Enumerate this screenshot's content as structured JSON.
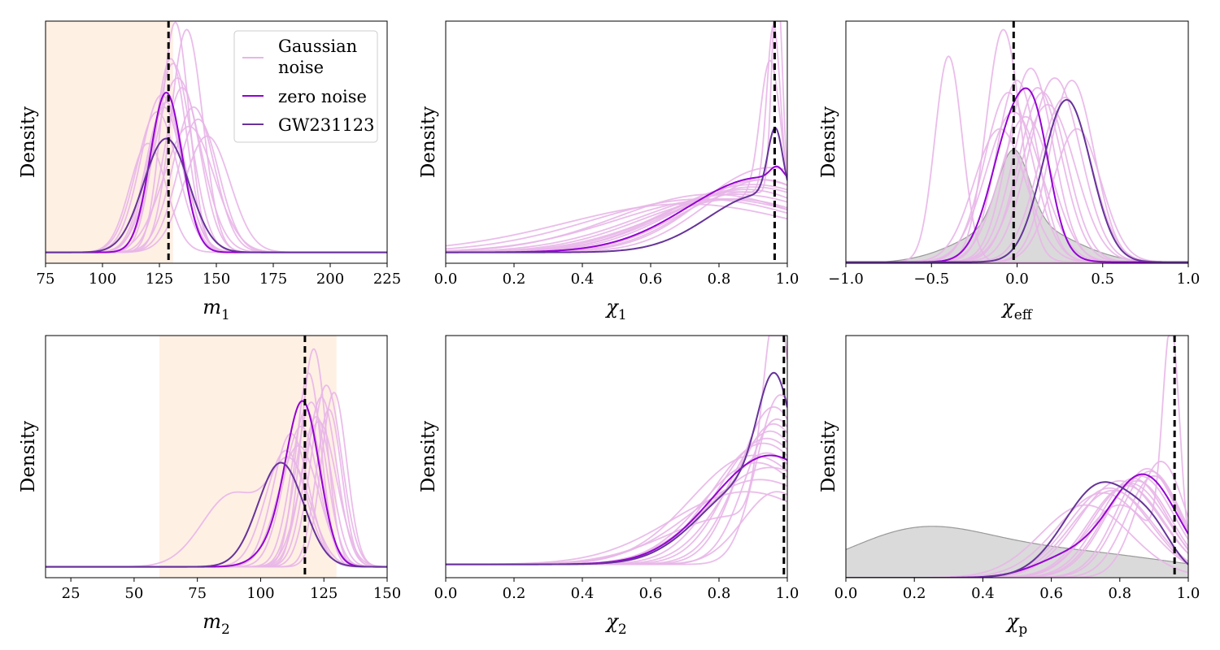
{
  "legend": {
    "entries": [
      {
        "label_line1": "Gaussian",
        "label_line2": "noise",
        "color": "#e6b3e6"
      },
      {
        "label_line1": "zero noise",
        "label_line2": "",
        "color": "#9400d3"
      },
      {
        "label_line1": "GW231123",
        "label_line2": "",
        "color": "#663399"
      }
    ]
  },
  "colors": {
    "gaussian": "#e8b6e8",
    "zero": "#9400d3",
    "gw": "#663399",
    "prior_fill": "#d3d3d3",
    "prior_stroke": "#999999",
    "band": "#fff0e4",
    "truth": "#000000"
  },
  "chart_data": [
    {
      "type": "line",
      "id": "m1",
      "ylabel": "Density",
      "xlabel_main": "m",
      "xlabel_sub": "1",
      "xlim": [
        75,
        225
      ],
      "ylim": [
        0,
        1
      ],
      "xticks": [
        75,
        100,
        125,
        150,
        175,
        200,
        225
      ],
      "xtick_labels": [
        "75",
        "100",
        "125",
        "150",
        "175",
        "200",
        "225"
      ],
      "band": [
        75,
        131
      ],
      "truth": 129,
      "baseline": 0.045,
      "show_legend": true,
      "series": [
        {
          "name": "zero noise",
          "peaks": [
            [
              128,
              0.66,
              7
            ]
          ]
        },
        {
          "name": "GW231123",
          "peaks": [
            [
              128,
              0.47,
              10
            ]
          ]
        }
      ],
      "gaussian_noise": [
        [
          [
            137,
            0.92,
            7
          ]
        ],
        [
          [
            131,
            0.78,
            8
          ]
        ],
        [
          [
            126,
            0.65,
            9
          ]
        ],
        [
          [
            133,
            0.72,
            10
          ]
        ],
        [
          [
            140,
            0.6,
            9
          ]
        ],
        [
          [
            128,
            0.62,
            8
          ]
        ],
        [
          [
            146,
            0.48,
            10
          ]
        ],
        [
          [
            120,
            0.45,
            8
          ]
        ],
        [
          [
            135,
            0.68,
            8
          ]
        ],
        [
          [
            130,
            0.8,
            7
          ]
        ],
        [
          [
            142,
            0.55,
            9
          ]
        ],
        [
          [
            124,
            0.58,
            9
          ]
        ],
        [
          [
            132,
            0.95,
            6
          ]
        ],
        [
          [
            138,
            0.52,
            11
          ]
        ],
        [
          [
            127,
            0.6,
            8
          ]
        ]
      ]
    },
    {
      "type": "line",
      "id": "chi1",
      "ylabel": "Density",
      "xlabel_main": "χ",
      "xlabel_sub": "1",
      "xlim": [
        0,
        1
      ],
      "ylim": [
        0,
        1
      ],
      "xticks": [
        0,
        0.2,
        0.4,
        0.6,
        0.8,
        1.0
      ],
      "xtick_labels": [
        "0.0",
        "0.2",
        "0.4",
        "0.6",
        "0.8",
        "1.0"
      ],
      "truth": 0.963,
      "baseline": 0.045,
      "series": [
        {
          "name": "zero noise",
          "peaks": [
            [
              0.93,
              0.31,
              0.22
            ],
            [
              0.97,
              0.05,
              0.02
            ]
          ]
        },
        {
          "name": "GW231123",
          "peaks": [
            [
              0.93,
              0.24,
              0.16
            ],
            [
              0.965,
              0.28,
              0.022
            ]
          ]
        }
      ],
      "gaussian_noise": [
        [
          [
            0.97,
            0.93,
            0.015
          ],
          [
            0.88,
            0.25,
            0.2
          ]
        ],
        [
          [
            0.96,
            0.72,
            0.02
          ],
          [
            0.85,
            0.25,
            0.22
          ]
        ],
        [
          [
            0.95,
            0.6,
            0.03
          ],
          [
            0.82,
            0.22,
            0.25
          ]
        ],
        [
          [
            0.9,
            0.28,
            0.25
          ]
        ],
        [
          [
            0.92,
            0.3,
            0.2
          ]
        ],
        [
          [
            0.85,
            0.24,
            0.28
          ]
        ],
        [
          [
            0.8,
            0.22,
            0.3
          ]
        ],
        [
          [
            0.88,
            0.26,
            0.22
          ]
        ],
        [
          [
            0.93,
            0.3,
            0.18
          ]
        ],
        [
          [
            0.75,
            0.22,
            0.32
          ]
        ],
        [
          [
            0.9,
            0.27,
            0.24
          ]
        ],
        [
          [
            0.95,
            0.35,
            0.2
          ]
        ],
        [
          [
            0.7,
            0.2,
            0.35
          ]
        ],
        [
          [
            0.85,
            0.22,
            0.25
          ]
        ],
        [
          [
            0.78,
            0.24,
            0.28
          ]
        ]
      ]
    },
    {
      "type": "line",
      "id": "chieff",
      "ylabel": "Density",
      "xlabel_main": "χ",
      "xlabel_sub": "eff",
      "xlim": [
        -1,
        1
      ],
      "ylim": [
        0,
        1
      ],
      "xticks": [
        -1,
        -0.5,
        0,
        0.5,
        1
      ],
      "xtick_labels": [
        "−1.0",
        "−0.5",
        "0.0",
        "0.5",
        "1.0"
      ],
      "truth": -0.02,
      "baseline": 0.005,
      "prior": {
        "peaks": [
          [
            -0.02,
            0.3,
            0.09
          ],
          [
            0.0,
            0.17,
            0.3
          ]
        ]
      },
      "series": [
        {
          "name": "zero noise",
          "peaks": [
            [
              0.0,
              0.62,
              0.14
            ],
            [
              0.12,
              0.2,
              0.08
            ]
          ]
        },
        {
          "name": "GW231123",
          "peaks": [
            [
              0.29,
              0.67,
              0.14
            ]
          ]
        }
      ],
      "gaussian_noise": [
        [
          [
            -0.4,
            0.85,
            0.08
          ]
        ],
        [
          [
            -0.08,
            0.96,
            0.1
          ]
        ],
        [
          [
            0.05,
            0.6,
            0.15
          ]
        ],
        [
          [
            0.12,
            0.72,
            0.14
          ]
        ],
        [
          [
            0.22,
            0.76,
            0.15
          ]
        ],
        [
          [
            0.32,
            0.75,
            0.13
          ]
        ],
        [
          [
            -0.05,
            0.7,
            0.14
          ]
        ],
        [
          [
            0.08,
            0.8,
            0.13
          ]
        ],
        [
          [
            0.18,
            0.65,
            0.16
          ]
        ],
        [
          [
            -0.1,
            0.55,
            0.15
          ]
        ],
        [
          [
            0.28,
            0.68,
            0.15
          ]
        ],
        [
          [
            0.0,
            0.75,
            0.12
          ]
        ],
        [
          [
            0.15,
            0.7,
            0.14
          ]
        ],
        [
          [
            -0.02,
            0.62,
            0.16
          ]
        ],
        [
          [
            0.35,
            0.55,
            0.14
          ]
        ]
      ]
    },
    {
      "type": "line",
      "id": "m2",
      "ylabel": "Density",
      "xlabel_main": "m",
      "xlabel_sub": "2",
      "xlim": [
        15,
        150
      ],
      "ylim": [
        0,
        1
      ],
      "xticks": [
        25,
        50,
        75,
        100,
        125,
        150
      ],
      "xtick_labels": [
        "25",
        "50",
        "75",
        "100",
        "125",
        "150"
      ],
      "band": [
        60,
        130
      ],
      "truth": 117.5,
      "baseline": 0.045,
      "series": [
        {
          "name": "zero noise",
          "peaks": [
            [
              117,
              0.63,
              6.5
            ],
            [
              108,
              0.1,
              8
            ]
          ]
        },
        {
          "name": "GW231123",
          "peaks": [
            [
              108,
              0.43,
              9
            ]
          ]
        }
      ],
      "gaussian_noise": [
        [
          [
            121,
            0.9,
            5
          ]
        ],
        [
          [
            129,
            0.72,
            5
          ]
        ],
        [
          [
            124,
            0.7,
            6
          ]
        ],
        [
          [
            119,
            0.8,
            5
          ]
        ],
        [
          [
            126,
            0.75,
            6
          ]
        ],
        [
          [
            112,
            0.55,
            7
          ]
        ],
        [
          [
            118,
            0.65,
            6
          ]
        ],
        [
          [
            89,
            0.3,
            12
          ],
          [
            112,
            0.4,
            8
          ]
        ],
        [
          [
            123,
            0.6,
            7
          ]
        ],
        [
          [
            115,
            0.5,
            8
          ]
        ],
        [
          [
            120,
            0.68,
            6
          ]
        ],
        [
          [
            127,
            0.65,
            5
          ]
        ],
        [
          [
            110,
            0.48,
            8
          ]
        ],
        [
          [
            116,
            0.58,
            7
          ]
        ],
        [
          [
            122,
            0.62,
            6
          ]
        ]
      ]
    },
    {
      "type": "line",
      "id": "chi2",
      "ylabel": "Density",
      "xlabel_main": "χ",
      "xlabel_sub": "2",
      "xlim": [
        0,
        1
      ],
      "ylim": [
        0,
        1
      ],
      "xticks": [
        0,
        0.2,
        0.4,
        0.6,
        0.8,
        1.0
      ],
      "xtick_labels": [
        "0.0",
        "0.2",
        "0.4",
        "0.6",
        "0.8",
        "1.0"
      ],
      "truth": 0.99,
      "baseline": 0.055,
      "series": [
        {
          "name": "zero noise",
          "peaks": [
            [
              0.95,
              0.45,
              0.17
            ]
          ]
        },
        {
          "name": "GW231123",
          "peaks": [
            [
              0.965,
              0.48,
              0.05
            ],
            [
              0.9,
              0.34,
              0.15
            ]
          ]
        }
      ],
      "gaussian_noise": [
        [
          [
            0.97,
            0.92,
            0.04
          ],
          [
            0.85,
            0.2,
            0.2
          ]
        ],
        [
          [
            0.96,
            0.65,
            0.1
          ]
        ],
        [
          [
            0.95,
            0.55,
            0.12
          ]
        ],
        [
          [
            0.93,
            0.5,
            0.15
          ]
        ],
        [
          [
            0.98,
            0.7,
            0.07
          ]
        ],
        [
          [
            0.9,
            0.45,
            0.18
          ]
        ],
        [
          [
            0.97,
            0.6,
            0.09
          ]
        ],
        [
          [
            0.94,
            0.52,
            0.14
          ]
        ],
        [
          [
            0.92,
            0.35,
            0.2
          ]
        ],
        [
          [
            0.96,
            0.58,
            0.11
          ]
        ],
        [
          [
            0.88,
            0.3,
            0.22
          ]
        ],
        [
          [
            0.95,
            0.4,
            0.18
          ]
        ],
        [
          [
            0.97,
            0.3,
            0.1
          ]
        ],
        [
          [
            0.91,
            0.42,
            0.16
          ]
        ],
        [
          [
            0.94,
            0.46,
            0.13
          ]
        ]
      ]
    },
    {
      "type": "line",
      "id": "chip",
      "ylabel": "Density",
      "xlabel_main": "χ",
      "xlabel_sub": "p",
      "xlim": [
        0,
        1
      ],
      "ylim": [
        0,
        1
      ],
      "xticks": [
        0,
        0.2,
        0.4,
        0.6,
        0.8,
        1.0
      ],
      "xtick_labels": [
        "0.0",
        "0.2",
        "0.4",
        "0.6",
        "0.8",
        "1.0"
      ],
      "truth": 0.96,
      "baseline": 0.0,
      "prior": {
        "peaks": [
          [
            0.2,
            0.15,
            0.2
          ],
          [
            0.6,
            0.11,
            0.35
          ]
        ]
      },
      "series": [
        {
          "name": "zero noise",
          "peaks": [
            [
              0.87,
              0.42,
              0.1
            ],
            [
              0.65,
              0.08,
              0.1
            ]
          ]
        },
        {
          "name": "GW231123",
          "peaks": [
            [
              0.75,
              0.39,
              0.11
            ],
            [
              0.9,
              0.1,
              0.06
            ]
          ]
        }
      ],
      "gaussian_noise": [
        [
          [
            0.95,
            0.95,
            0.025
          ],
          [
            0.8,
            0.3,
            0.1
          ]
        ],
        [
          [
            0.9,
            0.42,
            0.08
          ]
        ],
        [
          [
            0.85,
            0.4,
            0.1
          ]
        ],
        [
          [
            0.82,
            0.38,
            0.11
          ]
        ],
        [
          [
            0.88,
            0.45,
            0.09
          ]
        ],
        [
          [
            0.78,
            0.36,
            0.12
          ]
        ],
        [
          [
            0.92,
            0.48,
            0.07
          ]
        ],
        [
          [
            0.8,
            0.4,
            0.12
          ]
        ],
        [
          [
            0.86,
            0.42,
            0.1
          ]
        ],
        [
          [
            0.75,
            0.35,
            0.13
          ]
        ],
        [
          [
            0.83,
            0.39,
            0.11
          ]
        ],
        [
          [
            0.7,
            0.3,
            0.13
          ]
        ],
        [
          [
            0.89,
            0.44,
            0.09
          ]
        ],
        [
          [
            0.77,
            0.37,
            0.12
          ]
        ],
        [
          [
            0.84,
            0.41,
            0.1
          ]
        ]
      ]
    }
  ]
}
